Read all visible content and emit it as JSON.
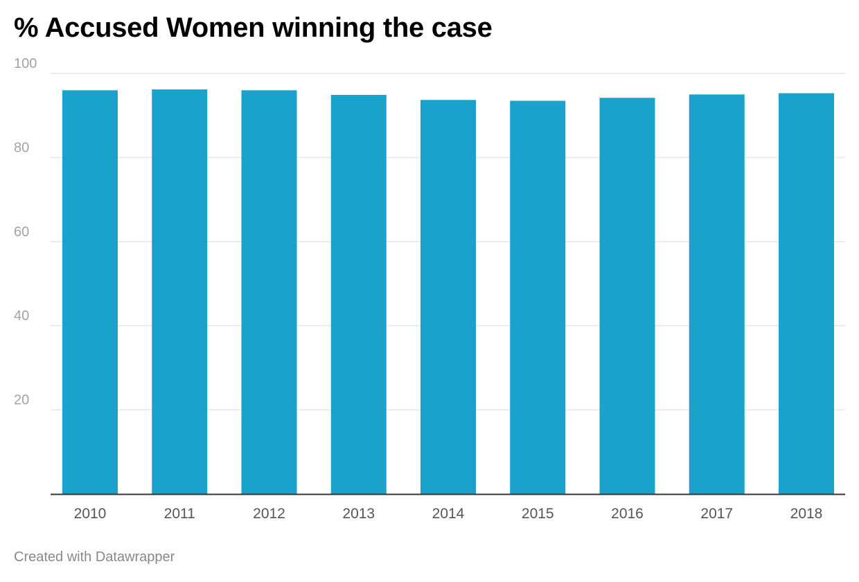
{
  "chart_data": {
    "type": "bar",
    "title": "% Accused Women winning the case",
    "categories": [
      "2010",
      "2011",
      "2012",
      "2013",
      "2014",
      "2015",
      "2016",
      "2017",
      "2018"
    ],
    "values": [
      96.0,
      96.2,
      96.0,
      94.9,
      93.7,
      93.5,
      94.2,
      95.0,
      95.3
    ],
    "ylim": [
      0,
      100
    ],
    "yticks": [
      20,
      40,
      60,
      80,
      100
    ],
    "xlabel": "",
    "ylabel": "",
    "grid": true,
    "legend": "none",
    "colors": {
      "bar": "#1aa1cc",
      "grid": "#e6e6e6",
      "tick_label": "#a3a3a3",
      "category_label": "#555555",
      "baseline": "#333333"
    }
  },
  "footer": {
    "credit": "Created with Datawrapper"
  }
}
